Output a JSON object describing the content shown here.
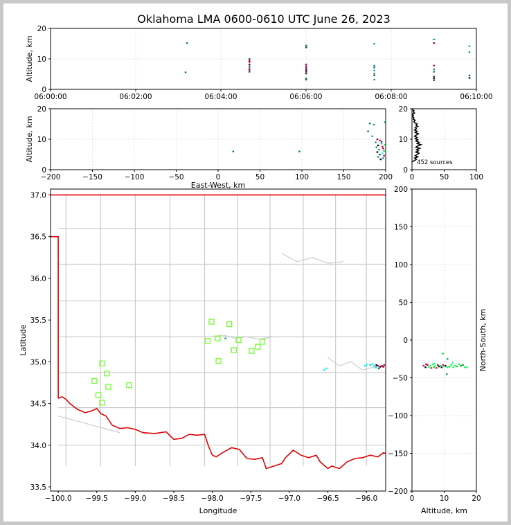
{
  "chart_data": [
    {
      "id": "time-height",
      "type": "scatter",
      "title": "Oklahoma LMA 0600-0610 UTC June 26, 2023",
      "xlabel": "",
      "ylabel": "Altitude, km",
      "xlim": [
        "06:00:00",
        "06:10:00"
      ],
      "ylim": [
        0,
        20
      ],
      "x_ticks": [
        "06:00:00",
        "06:02:00",
        "06:04:00",
        "06:06:00",
        "06:08:00",
        "06:10:00"
      ],
      "y_ticks": [
        "0",
        "10",
        "20"
      ],
      "grid": true,
      "points": [
        {
          "t": "06:03:12",
          "z": 15.2,
          "c": "#006f6f"
        },
        {
          "t": "06:03:10",
          "z": 5.6,
          "c": "#006f6f"
        },
        {
          "t": "06:04:40",
          "z": 10.0,
          "c": "#1f6f7f"
        },
        {
          "t": "06:04:40",
          "z": 9.5,
          "c": "#d4004a"
        },
        {
          "t": "06:04:40",
          "z": 9.0,
          "c": "#9a0030"
        },
        {
          "t": "06:04:40",
          "z": 8.2,
          "c": "#5a0040"
        },
        {
          "t": "06:04:40",
          "z": 7.6,
          "c": "#2a5f4f"
        },
        {
          "t": "06:04:40",
          "z": 7.0,
          "c": "#5a5a5a"
        },
        {
          "t": "06:04:40",
          "z": 6.4,
          "c": "#8a006a"
        },
        {
          "t": "06:04:40",
          "z": 5.8,
          "c": "#3a3a3a"
        },
        {
          "t": "06:06:00",
          "z": 14.4,
          "c": "#006f6f"
        },
        {
          "t": "06:06:00",
          "z": 13.8,
          "c": "#203f3f"
        },
        {
          "t": "06:06:00",
          "z": 8.2,
          "c": "#d4004a"
        },
        {
          "t": "06:06:00",
          "z": 7.6,
          "c": "#9a0030"
        },
        {
          "t": "06:06:00",
          "z": 7.0,
          "c": "#7a004a"
        },
        {
          "t": "06:06:00",
          "z": 6.4,
          "c": "#5a0050"
        },
        {
          "t": "06:06:00",
          "z": 5.8,
          "c": "#3a0040"
        },
        {
          "t": "06:06:00",
          "z": 5.2,
          "c": "#2a2a2a"
        },
        {
          "t": "06:06:00",
          "z": 3.6,
          "c": "#008f2f"
        },
        {
          "t": "06:06:00",
          "z": 3.2,
          "c": "#006f2f"
        },
        {
          "t": "06:07:36",
          "z": 15.0,
          "c": "#00a0a0"
        },
        {
          "t": "06:07:36",
          "z": 7.8,
          "c": "#1f7f7f"
        },
        {
          "t": "06:07:36",
          "z": 7.2,
          "c": "#006f6f"
        },
        {
          "t": "06:07:36",
          "z": 6.2,
          "c": "#009f9f"
        },
        {
          "t": "06:07:36",
          "z": 5.2,
          "c": "#3f6f6f"
        },
        {
          "t": "06:07:36",
          "z": 4.6,
          "c": "#1f3f3f"
        },
        {
          "t": "06:07:36",
          "z": 3.2,
          "c": "#00a060"
        },
        {
          "t": "06:09:00",
          "z": 16.4,
          "c": "#00a0a0"
        },
        {
          "t": "06:09:00",
          "z": 15.2,
          "c": "#9a0030"
        },
        {
          "t": "06:09:00",
          "z": 7.8,
          "c": "#d4004a"
        },
        {
          "t": "06:09:00",
          "z": 6.6,
          "c": "#00a060"
        },
        {
          "t": "06:09:00",
          "z": 5.8,
          "c": "#007f4f"
        },
        {
          "t": "06:09:00",
          "z": 4.2,
          "c": "#3a3a3a"
        },
        {
          "t": "06:09:00",
          "z": 3.6,
          "c": "#1f1f1f"
        },
        {
          "t": "06:09:00",
          "z": 3.0,
          "c": "#5a5a5a"
        },
        {
          "t": "06:09:50",
          "z": 14.2,
          "c": "#00a0a0"
        },
        {
          "t": "06:09:50",
          "z": 12.2,
          "c": "#008f8f"
        },
        {
          "t": "06:09:50",
          "z": 4.6,
          "c": "#006f6f"
        },
        {
          "t": "06:09:50",
          "z": 3.8,
          "c": "#000000"
        }
      ]
    },
    {
      "id": "ew-height",
      "type": "scatter",
      "xlabel": "East-West, km",
      "ylabel": "Altitude, km",
      "xlim": [
        -200,
        200
      ],
      "ylim": [
        0,
        20
      ],
      "x_ticks": [
        "−200",
        "−150",
        "−100",
        "−50",
        "0",
        "50",
        "100",
        "150",
        "200"
      ],
      "y_ticks": [
        "0",
        "10",
        "20"
      ],
      "grid": true,
      "points": [
        {
          "x": 18,
          "z": 6.0,
          "c": "#006f6f"
        },
        {
          "x": 97,
          "z": 6.0,
          "c": "#006f6f"
        },
        {
          "x": 181,
          "z": 15.2,
          "c": "#006f6f"
        },
        {
          "x": 186,
          "z": 14.8,
          "c": "#00a0a0"
        },
        {
          "x": 179,
          "z": 12.6,
          "c": "#006f6f"
        },
        {
          "x": 184,
          "z": 11.0,
          "c": "#009f9f"
        },
        {
          "x": 190,
          "z": 10.0,
          "c": "#5a0040"
        },
        {
          "x": 193,
          "z": 9.6,
          "c": "#d4004a"
        },
        {
          "x": 188,
          "z": 9.0,
          "c": "#1f6f7f"
        },
        {
          "x": 195,
          "z": 8.6,
          "c": "#00c0c0"
        },
        {
          "x": 191,
          "z": 8.0,
          "c": "#000000"
        },
        {
          "x": 196,
          "z": 7.6,
          "c": "#d4004a"
        },
        {
          "x": 189,
          "z": 7.4,
          "c": "#008f2f"
        },
        {
          "x": 197,
          "z": 7.0,
          "c": "#9a0030"
        },
        {
          "x": 192,
          "z": 6.6,
          "c": "#00a0a0"
        },
        {
          "x": 198,
          "z": 6.2,
          "c": "#00e000"
        },
        {
          "x": 190,
          "z": 5.8,
          "c": "#000000"
        },
        {
          "x": 196,
          "z": 5.4,
          "c": "#00ffff"
        },
        {
          "x": 193,
          "z": 5.0,
          "c": "#1f3f3f"
        },
        {
          "x": 198,
          "z": 4.6,
          "c": "#d4004a"
        },
        {
          "x": 191,
          "z": 4.2,
          "c": "#00a060"
        },
        {
          "x": 197,
          "z": 3.8,
          "c": "#008f8f"
        },
        {
          "x": 194,
          "z": 3.4,
          "c": "#000000"
        },
        {
          "x": 199,
          "z": 8.2,
          "c": "#00ff60"
        },
        {
          "x": 195,
          "z": 9.2,
          "c": "#3a3a3a"
        },
        {
          "x": 199,
          "z": 15.6,
          "c": "#00a0a0"
        }
      ]
    },
    {
      "id": "height-histogram",
      "type": "line",
      "annotation": "452 sources",
      "xlim": [
        0,
        100
      ],
      "ylim": [
        0,
        20
      ],
      "x_ticks": [
        "0",
        "50",
        "100"
      ],
      "y_ticks": [
        "0",
        "10",
        "20"
      ],
      "grid": true,
      "profile": [
        {
          "z": 2.6,
          "n": 0
        },
        {
          "z": 3.0,
          "n": 4
        },
        {
          "z": 3.4,
          "n": 7
        },
        {
          "z": 3.8,
          "n": 4
        },
        {
          "z": 4.2,
          "n": 9
        },
        {
          "z": 4.6,
          "n": 5
        },
        {
          "z": 5.0,
          "n": 8
        },
        {
          "z": 5.4,
          "n": 11
        },
        {
          "z": 5.8,
          "n": 6
        },
        {
          "z": 6.2,
          "n": 10
        },
        {
          "z": 6.6,
          "n": 7
        },
        {
          "z": 7.0,
          "n": 12
        },
        {
          "z": 7.4,
          "n": 6
        },
        {
          "z": 7.8,
          "n": 9
        },
        {
          "z": 8.2,
          "n": 14
        },
        {
          "z": 8.6,
          "n": 8
        },
        {
          "z": 9.0,
          "n": 11
        },
        {
          "z": 9.4,
          "n": 6
        },
        {
          "z": 9.8,
          "n": 9
        },
        {
          "z": 10.2,
          "n": 5
        },
        {
          "z": 10.6,
          "n": 8
        },
        {
          "z": 11.0,
          "n": 4
        },
        {
          "z": 11.4,
          "n": 7
        },
        {
          "z": 11.8,
          "n": 10
        },
        {
          "z": 12.2,
          "n": 5
        },
        {
          "z": 12.6,
          "n": 8
        },
        {
          "z": 13.0,
          "n": 4
        },
        {
          "z": 13.4,
          "n": 7
        },
        {
          "z": 13.8,
          "n": 5
        },
        {
          "z": 14.2,
          "n": 9
        },
        {
          "z": 14.6,
          "n": 6
        },
        {
          "z": 15.0,
          "n": 8
        },
        {
          "z": 15.4,
          "n": 4
        },
        {
          "z": 15.8,
          "n": 3
        },
        {
          "z": 16.2,
          "n": 5
        },
        {
          "z": 16.6,
          "n": 2
        },
        {
          "z": 17.0,
          "n": 3
        },
        {
          "z": 17.4,
          "n": 1
        },
        {
          "z": 17.8,
          "n": 2
        },
        {
          "z": 18.2,
          "n": 1
        },
        {
          "z": 18.6,
          "n": 4
        },
        {
          "z": 19.0,
          "n": 2
        },
        {
          "z": 19.4,
          "n": 3
        },
        {
          "z": 19.8,
          "n": 0
        }
      ]
    },
    {
      "id": "plan-view-map",
      "type": "scatter",
      "xlabel": "Longitude",
      "ylabel": "Latitude",
      "xlim": [
        -100.1,
        -95.75
      ],
      "ylim": [
        33.45,
        37.07
      ],
      "x_ticks": [
        "−100.0",
        "−99.5",
        "−99.0",
        "−98.5",
        "−98.0",
        "−97.5",
        "−97.0",
        "−96.5",
        "−96.0"
      ],
      "y_ticks": [
        "33.5",
        "34.0",
        "34.5",
        "35.0",
        "35.5",
        "36.0",
        "36.5",
        "37.0"
      ],
      "state_border_color": "#e00000",
      "county_line_color": "#c8c8c8",
      "station_color": "#7cfc3c",
      "stations": [
        {
          "lon": -99.43,
          "lat": 34.98
        },
        {
          "lon": -99.37,
          "lat": 34.86
        },
        {
          "lon": -99.53,
          "lat": 34.77
        },
        {
          "lon": -99.35,
          "lat": 34.7
        },
        {
          "lon": -99.48,
          "lat": 34.6
        },
        {
          "lon": -99.43,
          "lat": 34.51
        },
        {
          "lon": -99.08,
          "lat": 34.72
        },
        {
          "lon": -98.01,
          "lat": 35.48
        },
        {
          "lon": -97.78,
          "lat": 35.45
        },
        {
          "lon": -98.06,
          "lat": 35.25
        },
        {
          "lon": -97.93,
          "lat": 35.28
        },
        {
          "lon": -97.66,
          "lat": 35.26
        },
        {
          "lon": -97.35,
          "lat": 35.24
        },
        {
          "lon": -97.41,
          "lat": 35.18
        },
        {
          "lon": -97.72,
          "lat": 35.14
        },
        {
          "lon": -97.49,
          "lat": 35.13
        },
        {
          "lon": -97.92,
          "lat": 35.01
        }
      ],
      "points": [
        {
          "lon": -96.55,
          "lat": 34.9,
          "c": "#00ffff"
        },
        {
          "lon": -96.52,
          "lat": 34.92,
          "c": "#00ffff"
        },
        {
          "lon": -96.0,
          "lat": 34.97,
          "c": "#00ffff"
        },
        {
          "lon": -95.95,
          "lat": 34.96,
          "c": "#00d0d0"
        },
        {
          "lon": -95.9,
          "lat": 34.95,
          "c": "#00ffff"
        },
        {
          "lon": -95.87,
          "lat": 34.96,
          "c": "#000000"
        },
        {
          "lon": -95.85,
          "lat": 34.95,
          "c": "#d4004a"
        },
        {
          "lon": -95.82,
          "lat": 34.94,
          "c": "#000000"
        },
        {
          "lon": -95.8,
          "lat": 34.95,
          "c": "#d4004a"
        },
        {
          "lon": -95.78,
          "lat": 34.94,
          "c": "#9a0030"
        },
        {
          "lon": -95.88,
          "lat": 34.93,
          "c": "#00e0e0"
        },
        {
          "lon": -95.92,
          "lat": 34.97,
          "c": "#00ffff"
        },
        {
          "lon": -95.84,
          "lat": 34.92,
          "c": "#006f6f"
        },
        {
          "lon": -95.77,
          "lat": 34.96,
          "c": "#d4004a"
        },
        {
          "lon": -96.02,
          "lat": 34.95,
          "c": "#00ffff"
        },
        {
          "lon": -97.83,
          "lat": 35.28,
          "c": "#00a0a0"
        }
      ]
    },
    {
      "id": "ns-height",
      "type": "scatter",
      "xlabel": "Altitude, km",
      "ylabel": "North-South, km",
      "xlim": [
        0,
        20
      ],
      "ylim": [
        -200,
        200
      ],
      "x_ticks": [
        "0",
        "10",
        "20"
      ],
      "y_ticks": [
        "−200",
        "−150",
        "−100",
        "−50",
        "0",
        "50",
        "100",
        "150",
        "200"
      ],
      "grid": true,
      "points": [
        {
          "z": 3.6,
          "y": -34,
          "c": "#d4004a"
        },
        {
          "z": 4.2,
          "y": -36,
          "c": "#000000"
        },
        {
          "z": 4.8,
          "y": -33,
          "c": "#9a0030"
        },
        {
          "z": 5.2,
          "y": -36,
          "c": "#00ff60"
        },
        {
          "z": 5.6,
          "y": -34,
          "c": "#00ff60"
        },
        {
          "z": 6.0,
          "y": -37,
          "c": "#d4004a"
        },
        {
          "z": 6.4,
          "y": -32,
          "c": "#00ff60"
        },
        {
          "z": 6.8,
          "y": -36,
          "c": "#00e000"
        },
        {
          "z": 7.2,
          "y": -34,
          "c": "#00ff60"
        },
        {
          "z": 7.6,
          "y": -37,
          "c": "#d4004a"
        },
        {
          "z": 8.0,
          "y": -33,
          "c": "#9a0030"
        },
        {
          "z": 8.4,
          "y": -35,
          "c": "#000000"
        },
        {
          "z": 8.8,
          "y": -34,
          "c": "#00ff60"
        },
        {
          "z": 9.2,
          "y": -36,
          "c": "#000000"
        },
        {
          "z": 9.6,
          "y": -33,
          "c": "#d4004a"
        },
        {
          "z": 10.0,
          "y": -35,
          "c": "#00ff60"
        },
        {
          "z": 10.4,
          "y": -34,
          "c": "#000000"
        },
        {
          "z": 11.0,
          "y": -36,
          "c": "#00ff60"
        },
        {
          "z": 11.6,
          "y": -35,
          "c": "#00e000"
        },
        {
          "z": 12.2,
          "y": -33,
          "c": "#00ff60"
        },
        {
          "z": 12.8,
          "y": -36,
          "c": "#00ff60"
        },
        {
          "z": 13.4,
          "y": -34,
          "c": "#00ff60"
        },
        {
          "z": 14.0,
          "y": -35,
          "c": "#00e000"
        },
        {
          "z": 14.6,
          "y": -32,
          "c": "#00ff60"
        },
        {
          "z": 15.2,
          "y": -34,
          "c": "#00a000"
        },
        {
          "z": 15.8,
          "y": -33,
          "c": "#008f2f"
        },
        {
          "z": 16.4,
          "y": -36,
          "c": "#00ff60"
        },
        {
          "z": 9.6,
          "y": -18,
          "c": "#00e000"
        },
        {
          "z": 11.0,
          "y": -25,
          "c": "#00a060"
        },
        {
          "z": 12.6,
          "y": -30,
          "c": "#00ff60"
        },
        {
          "z": 4.4,
          "y": -32,
          "c": "#d4004a"
        },
        {
          "z": 7.0,
          "y": -31,
          "c": "#00ff60"
        },
        {
          "z": 10.8,
          "y": -45,
          "c": "#00a0a0"
        },
        {
          "z": 17.0,
          "y": -36,
          "c": "#00ff60"
        }
      ]
    }
  ]
}
